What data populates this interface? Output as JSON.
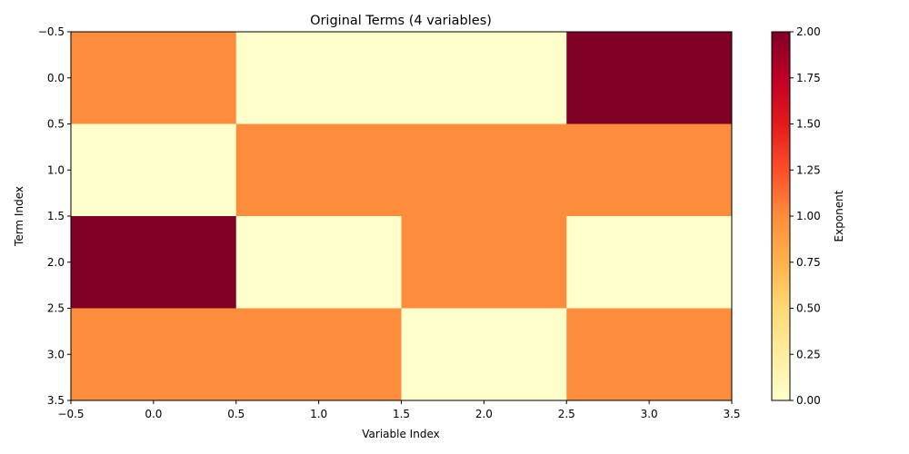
{
  "chart_data": {
    "type": "heatmap",
    "title": "Original Terms (4 variables)",
    "xlabel": "Variable Index",
    "ylabel": "Term Index",
    "xlim": [
      -0.5,
      3.5
    ],
    "ylim": [
      3.5,
      -0.5
    ],
    "x_ticks": [
      "−0.5",
      "0.0",
      "0.5",
      "1.0",
      "1.5",
      "2.0",
      "2.5",
      "3.0",
      "3.5"
    ],
    "y_ticks": [
      "−0.5",
      "0.0",
      "0.5",
      "1.0",
      "1.5",
      "2.0",
      "2.5",
      "3.0",
      "3.5"
    ],
    "rows": [
      0,
      1,
      2,
      3
    ],
    "columns": [
      0,
      1,
      2,
      3
    ],
    "values": [
      [
        1,
        0,
        0,
        2
      ],
      [
        0,
        1,
        1,
        1
      ],
      [
        2,
        0,
        1,
        0
      ],
      [
        1,
        1,
        0,
        1
      ]
    ],
    "colormap": "YlOrRd",
    "value_colors": {
      "0": "#ffffcc",
      "1": "#fd8d3c",
      "2": "#800026"
    },
    "colorbar": {
      "label": "Exponent",
      "range": [
        0,
        2
      ],
      "ticks": [
        "0.00",
        "0.25",
        "0.50",
        "0.75",
        "1.00",
        "1.25",
        "1.50",
        "1.75",
        "2.00"
      ],
      "gradient_stops": [
        "#ffffcc",
        "#ffeda0",
        "#fed976",
        "#feb24c",
        "#fd8d3c",
        "#fc4e2a",
        "#e31a1c",
        "#bd0026",
        "#800026"
      ]
    },
    "grid": false
  }
}
